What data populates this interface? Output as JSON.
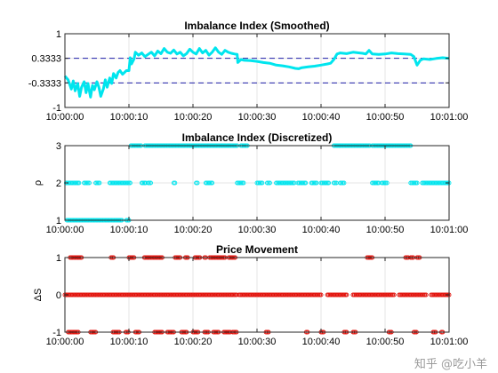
{
  "watermark": "知乎 @吃小羊",
  "colors": {
    "cyan": "#00e5ee",
    "red": "#e3120b",
    "dash": "#1f1fa8",
    "grid": "#e6e6e6",
    "axis": "#262626"
  },
  "time_ticks": [
    "10:00:00",
    "10:00:10",
    "10:00:20",
    "10:00:30",
    "10:00:40",
    "10:00:50",
    "10:01:00"
  ],
  "chart_data": [
    {
      "type": "line",
      "title": "Imbalance Index (Smoothed)",
      "xlabel": "",
      "ylabel": "",
      "x_unit": "seconds after 10:00:00",
      "xlim": [
        0,
        60
      ],
      "ylim": [
        -1,
        1
      ],
      "yticks": [
        -1,
        -0.3333,
        0.3333,
        1
      ],
      "ytick_labels": [
        "-1",
        "-0.3333",
        "0.3333",
        "1"
      ],
      "reference_lines": [
        -0.3333,
        0.3333
      ],
      "grid": true,
      "series": [
        {
          "color": "#00e5ee",
          "x": [
            0,
            0.5,
            1,
            1.3,
            1.6,
            2,
            2.3,
            2.6,
            3,
            3.3,
            3.6,
            4,
            4.3,
            4.6,
            5,
            5.3,
            5.6,
            6,
            6.3,
            6.6,
            7,
            7.3,
            7.6,
            8,
            8.3,
            8.6,
            9,
            9.3,
            9.6,
            10,
            10.2,
            10.4,
            10.8,
            11,
            11.5,
            12,
            12.5,
            13,
            13.5,
            14,
            14.5,
            15,
            15.5,
            16,
            16.5,
            17,
            17.5,
            18,
            18.5,
            19,
            19.5,
            20,
            20.5,
            21,
            21.5,
            22,
            22.5,
            23,
            23.5,
            24,
            24.5,
            25,
            25.5,
            26,
            26.5,
            26.9,
            27,
            27.5,
            28,
            29,
            30,
            31,
            32,
            33,
            34,
            35,
            36,
            36.5,
            37,
            38,
            39,
            40,
            41,
            41.5,
            42,
            42.5,
            43,
            44,
            45,
            46,
            46.5,
            47,
            47.5,
            48,
            49,
            50,
            51,
            52,
            53,
            54,
            54.5,
            55,
            55.5,
            56,
            57,
            58,
            59,
            60
          ],
          "y": [
            -0.15,
            -0.25,
            -0.5,
            -0.28,
            -0.55,
            -0.35,
            -0.7,
            -0.45,
            -0.3,
            -0.6,
            -0.35,
            -0.72,
            -0.4,
            -0.52,
            -0.3,
            -0.45,
            -0.7,
            -0.5,
            -0.25,
            -0.45,
            -0.2,
            -0.35,
            -0.08,
            -0.2,
            -0.05,
            0.0,
            -0.1,
            -0.05,
            0.0,
            0.0,
            0.35,
            0.18,
            0.32,
            0.5,
            0.42,
            0.48,
            0.38,
            0.44,
            0.5,
            0.4,
            0.53,
            0.46,
            0.6,
            0.5,
            0.47,
            0.56,
            0.45,
            0.5,
            0.4,
            0.46,
            0.58,
            0.5,
            0.45,
            0.6,
            0.48,
            0.55,
            0.42,
            0.5,
            0.62,
            0.5,
            0.44,
            0.55,
            0.5,
            0.47,
            0.45,
            0.44,
            0.22,
            0.3,
            0.28,
            0.27,
            0.25,
            0.22,
            0.2,
            0.15,
            0.13,
            0.1,
            0.06,
            0.05,
            0.08,
            0.1,
            0.12,
            0.15,
            0.18,
            0.2,
            0.3,
            0.45,
            0.48,
            0.46,
            0.5,
            0.48,
            0.47,
            0.45,
            0.55,
            0.45,
            0.44,
            0.45,
            0.48,
            0.46,
            0.45,
            0.44,
            0.38,
            0.15,
            0.28,
            0.32,
            0.3,
            0.33,
            0.35,
            0.33
          ]
        }
      ]
    },
    {
      "type": "scatter",
      "title": "Imbalance Index (Discretized)",
      "xlabel": "",
      "ylabel": "ρ",
      "x_unit": "seconds after 10:00:00",
      "xlim": [
        0,
        60
      ],
      "ylim": [
        1,
        3
      ],
      "yticks": [
        1,
        2,
        3
      ],
      "ytick_labels": [
        "1",
        "2",
        "3"
      ],
      "grid": true,
      "series": [
        {
          "color": "#00e5ee",
          "level_segments": [
            {
              "y": 1,
              "ranges": [
                [
                  0.3,
                  9.0
                ],
                [
                  9.6,
                  10.0
                ]
              ]
            },
            {
              "y": 2,
              "ranges": [
                [
                  0.2,
                  2.2
                ],
                [
                  3.0,
                  3.8
                ],
                [
                  4.8,
                  5.5
                ],
                [
                  7.0,
                  10.2
                ],
                [
                  12.0,
                  12.6
                ],
                [
                  13.0,
                  13.4
                ],
                [
                  17.0,
                  17.2
                ],
                [
                  20.5,
                  20.8
                ],
                [
                  22.0,
                  23.0
                ],
                [
                  26.9,
                  28.0
                ],
                [
                  30.0,
                  30.8
                ],
                [
                  31.6,
                  32.0
                ],
                [
                  33.0,
                  35.8
                ],
                [
                  36.4,
                  37.6
                ],
                [
                  38.5,
                  39.3
                ],
                [
                  40.0,
                  41.2
                ],
                [
                  42.0,
                  42.4
                ],
                [
                  43.0,
                  43.6
                ],
                [
                  48.0,
                  49.0
                ],
                [
                  49.5,
                  50.4
                ],
                [
                  54.0,
                  55.0
                ],
                [
                  55.8,
                  60.0
                ]
              ]
            },
            {
              "y": 3,
              "ranges": [
                [
                  10.3,
                  12.0
                ],
                [
                  12.5,
                  26.9
                ],
                [
                  27.5,
                  28.5
                ],
                [
                  42.0,
                  47.6
                ],
                [
                  48.0,
                  54.0
                ]
              ]
            }
          ]
        }
      ]
    },
    {
      "type": "scatter",
      "title": "Price Movement",
      "xlabel": "",
      "ylabel": "ΔS",
      "x_unit": "seconds after 10:00:00",
      "xlim": [
        0,
        60
      ],
      "ylim": [
        -1,
        1
      ],
      "yticks": [
        -1,
        0,
        1
      ],
      "ytick_labels": [
        "-1",
        "0",
        "1"
      ],
      "grid": true,
      "series": [
        {
          "color": "#e3120b",
          "level_segments": [
            {
              "y": 1,
              "ranges": [
                [
                  0.8,
                  2.6
                ],
                [
                  7.2,
                  7.6
                ],
                [
                  10.0,
                  10.8
                ],
                [
                  12.4,
                  15.2
                ],
                [
                  17.2,
                  18.0
                ],
                [
                  18.8,
                  19.2
                ],
                [
                  20.3,
                  21.2
                ],
                [
                  21.8,
                  22.1
                ],
                [
                  22.6,
                  25.0
                ],
                [
                  25.6,
                  26.6
                ],
                [
                  47.2,
                  48.1
                ],
                [
                  53.2,
                  53.6
                ],
                [
                  54.0,
                  54.5
                ],
                [
                  55.0,
                  55.5
                ]
              ]
            },
            {
              "y": 0,
              "ranges": [
                [
                  0.0,
                  26.8
                ],
                [
                  27.2,
                  40.0
                ],
                [
                  41.0,
                  44.0
                ],
                [
                  45.0,
                  51.5
                ],
                [
                  52.2,
                  56.5
                ],
                [
                  57.2,
                  60.0
                ]
              ]
            },
            {
              "y": -1,
              "ranges": [
                [
                  0.5,
                  2.2
                ],
                [
                  4.0,
                  4.8
                ],
                [
                  7.5,
                  8.5
                ],
                [
                  9.5,
                  10.0
                ],
                [
                  11.0,
                  11.6
                ],
                [
                  14.0,
                  15.2
                ],
                [
                  16.0,
                  17.0
                ],
                [
                  18.2,
                  19.0
                ],
                [
                  20.0,
                  20.8
                ],
                [
                  21.8,
                  22.4
                ],
                [
                  23.2,
                  24.0
                ],
                [
                  24.8,
                  25.8
                ],
                [
                  26.2,
                  26.8
                ],
                [
                  31.4,
                  31.8
                ],
                [
                  37.7,
                  38.0
                ],
                [
                  40.0,
                  40.4
                ],
                [
                  43.6,
                  44.0
                ],
                [
                  45.0,
                  45.4
                ],
                [
                  50.6,
                  51.0
                ],
                [
                  54.5,
                  55.0
                ],
                [
                  57.5,
                  58.0
                ],
                [
                  58.8,
                  59.1
                ]
              ]
            }
          ]
        }
      ]
    }
  ]
}
